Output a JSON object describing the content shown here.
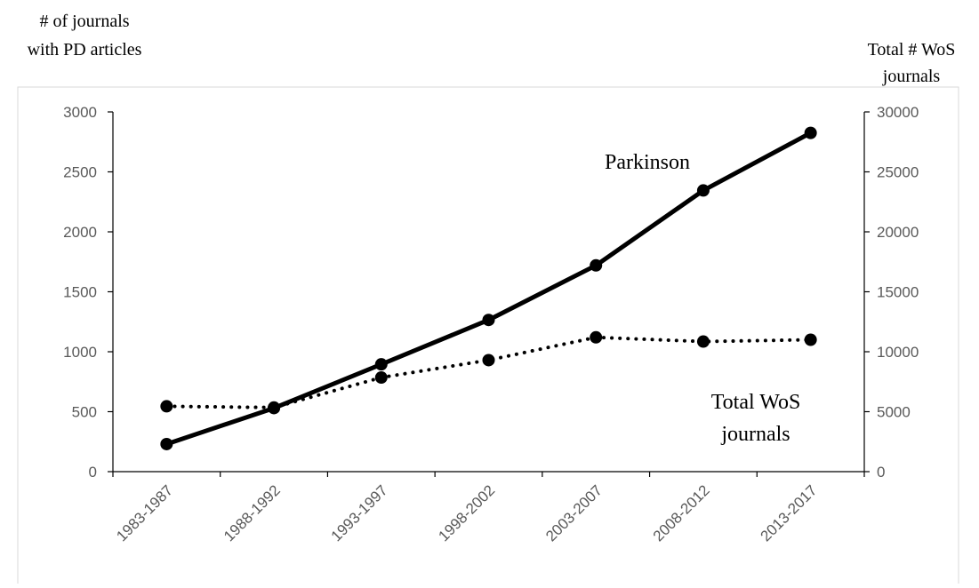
{
  "chart_data": {
    "type": "line",
    "categories": [
      "1983-1987",
      "1988-1992",
      "1993-1997",
      "1998-2002",
      "2003-2007",
      "2008-2012",
      "2013-2017"
    ],
    "y_left": {
      "title_lines": [
        "# of journals",
        "with PD articles"
      ],
      "ticks": [
        0,
        500,
        1000,
        1500,
        2000,
        2500,
        3000
      ],
      "range": [
        0,
        3000
      ]
    },
    "y_right": {
      "title_lines": [
        "Total # WoS",
        "journals"
      ],
      "ticks": [
        0,
        5000,
        10000,
        15000,
        20000,
        25000,
        30000
      ],
      "range": [
        0,
        30000
      ]
    },
    "series": [
      {
        "name": "Parkinson",
        "axis": "left",
        "line_style": "solid",
        "color": "#000000",
        "values": [
          230,
          530,
          895,
          1265,
          1720,
          2345,
          2825
        ]
      },
      {
        "name_lines": [
          "Total WoS",
          "journals"
        ],
        "axis": "right",
        "line_style": "dotted",
        "color": "#000000",
        "values": [
          5450,
          5350,
          7850,
          9300,
          11200,
          10850,
          11000
        ]
      }
    ],
    "grid": false,
    "legend": "none (direct labels)"
  }
}
